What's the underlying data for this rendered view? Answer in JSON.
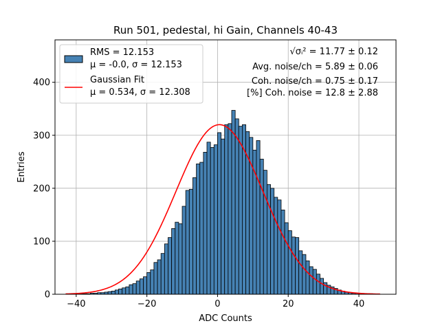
{
  "chart_data": {
    "type": "bar",
    "title": "Run 501, pedestal, hi Gain, Channels 40-43",
    "xlabel": "ADC Counts",
    "ylabel": "Entries",
    "xlim": [
      -46,
      50.5
    ],
    "ylim": [
      0,
      480
    ],
    "x_ticks": [
      -40,
      -20,
      0,
      20,
      40
    ],
    "x_tick_labels": [
      "−40",
      "−20",
      "0",
      "20",
      "40"
    ],
    "y_ticks": [
      0,
      100,
      200,
      300,
      400
    ],
    "y_tick_labels": [
      "0",
      "100",
      "200",
      "300",
      "400"
    ],
    "grid": true,
    "legend_position": "upper-left",
    "colors": {
      "bars": "#4682b4",
      "bar_edge": "#000000",
      "fit": "#ff0000",
      "grid": "#b0b0b0"
    },
    "histogram": {
      "bin_width": 1,
      "first_bin_start": -42,
      "counts": [
        0,
        0,
        1,
        1,
        1,
        1,
        2,
        2,
        3,
        3,
        4,
        5,
        6,
        8,
        10,
        12,
        14,
        18,
        20,
        25,
        29,
        33,
        41,
        46,
        60,
        65,
        77,
        95,
        107,
        124,
        136,
        133,
        166,
        196,
        198,
        220,
        246,
        249,
        268,
        287,
        277,
        282,
        305,
        293,
        320,
        322,
        347,
        331,
        317,
        320,
        307,
        296,
        272,
        290,
        255,
        234,
        207,
        200,
        183,
        178,
        159,
        135,
        120,
        108,
        107,
        82,
        75,
        63,
        52,
        47,
        38,
        30,
        22,
        17,
        14,
        11,
        8,
        6,
        4,
        3,
        2,
        2,
        1,
        1,
        1,
        1,
        0,
        0
      ]
    },
    "gaussian_fit": {
      "mu": 0.534,
      "sigma": 12.308,
      "amplitude": 320,
      "x_range": [
        -43,
        46
      ]
    },
    "legend": [
      {
        "label_lines": [
          "RMS = 12.153",
          "μ = -0.0, σ = 12.153"
        ],
        "marker": "patch"
      },
      {
        "label_lines": [
          "Gaussian Fit",
          "μ = 0.534, σ = 12.308"
        ],
        "marker": "line"
      }
    ],
    "annotations": [
      "√σᵢ² = 11.77 ± 0.12",
      "Avg. noise/ch = 5.89 ± 0.06",
      "Coh. noise/ch = 0.75 ± 0.17",
      "[%] Coh. noise = 12.8 ± 2.88"
    ]
  }
}
